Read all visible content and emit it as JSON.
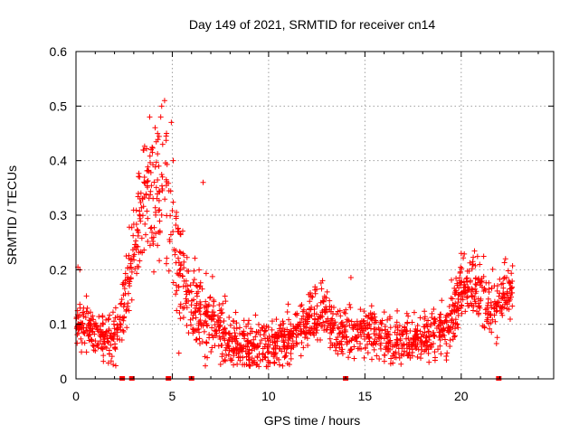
{
  "chart_data": {
    "type": "scatter",
    "title": "Day 149 of 2021, SRMTID for receiver cn14",
    "xlabel": "GPS time / hours",
    "ylabel": "SRMTID / TECUs",
    "xlim": [
      0,
      24.8
    ],
    "ylim": [
      0,
      0.6
    ],
    "grid": true,
    "x_ticks": [
      {
        "value": 0,
        "label": "0"
      },
      {
        "value": 5,
        "label": "5"
      },
      {
        "value": 10,
        "label": "10"
      },
      {
        "value": 15,
        "label": "15"
      },
      {
        "value": 20,
        "label": "20"
      }
    ],
    "y_ticks": [
      {
        "value": 0,
        "label": "0"
      },
      {
        "value": 0.1,
        "label": "0.1"
      },
      {
        "value": 0.2,
        "label": "0.2"
      },
      {
        "value": 0.3,
        "label": "0.3"
      },
      {
        "value": 0.4,
        "label": "0.4"
      },
      {
        "value": 0.5,
        "label": "0.5"
      },
      {
        "value": 0.6,
        "label": "0.6"
      }
    ],
    "series_color": "#ff0000",
    "marker": "plus",
    "envelope": {
      "x": [
        0,
        0.5,
        1,
        1.5,
        2,
        2.3,
        2.6,
        2.9,
        3.2,
        3.5,
        3.8,
        4.1,
        4.4,
        4.7,
        5,
        5.3,
        5.6,
        6,
        6.5,
        7,
        7.5,
        8,
        8.5,
        9,
        9.5,
        10,
        10.5,
        11,
        11.5,
        12,
        12.5,
        13,
        13.5,
        14,
        14.5,
        15,
        15.5,
        16,
        16.5,
        17,
        17.5,
        18,
        18.5,
        19,
        19.5,
        20,
        20.5,
        21,
        21.5,
        22,
        22.3,
        22.7
      ],
      "y": [
        0.1,
        0.1,
        0.09,
        0.07,
        0.08,
        0.1,
        0.16,
        0.22,
        0.28,
        0.33,
        0.36,
        0.34,
        0.32,
        0.33,
        0.27,
        0.22,
        0.17,
        0.14,
        0.12,
        0.1,
        0.09,
        0.07,
        0.06,
        0.05,
        0.06,
        0.06,
        0.07,
        0.07,
        0.08,
        0.11,
        0.12,
        0.11,
        0.09,
        0.09,
        0.09,
        0.09,
        0.08,
        0.07,
        0.07,
        0.07,
        0.07,
        0.07,
        0.08,
        0.08,
        0.11,
        0.16,
        0.17,
        0.15,
        0.13,
        0.14,
        0.16,
        0.16
      ]
    },
    "spread": {
      "x": [
        0,
        2,
        2.5,
        3.5,
        4.5,
        5.5,
        6.5,
        8,
        12,
        18,
        19.5,
        21,
        22.7
      ],
      "y": [
        0.035,
        0.035,
        0.06,
        0.09,
        0.11,
        0.09,
        0.06,
        0.04,
        0.04,
        0.035,
        0.045,
        0.045,
        0.04
      ]
    },
    "points_count": 1800,
    "random_seed": 149,
    "outliers": [
      {
        "x": 4.6,
        "y": 0.51
      },
      {
        "x": 4.4,
        "y": 0.48
      },
      {
        "x": 4.7,
        "y": 0.45
      },
      {
        "x": 4.5,
        "y": 0.43
      },
      {
        "x": 5.05,
        "y": 0.4
      },
      {
        "x": 4.3,
        "y": 0.39
      },
      {
        "x": 3.9,
        "y": 0.42
      },
      {
        "x": 6.6,
        "y": 0.36
      },
      {
        "x": 3.3,
        "y": 0.37
      },
      {
        "x": 4.95,
        "y": 0.47
      },
      {
        "x": 4.45,
        "y": 0.5
      },
      {
        "x": 0.2,
        "y": 0.2
      },
      {
        "x": 20.0,
        "y": 0.23
      },
      {
        "x": 22.3,
        "y": 0.22
      },
      {
        "x": 12.8,
        "y": 0.18
      },
      {
        "x": 0.1,
        "y": 0.205
      },
      {
        "x": 20.6,
        "y": 0.215
      }
    ],
    "data_gaps": [
      2.4,
      2.9,
      4.8,
      6.0,
      14.0,
      21.95
    ]
  }
}
